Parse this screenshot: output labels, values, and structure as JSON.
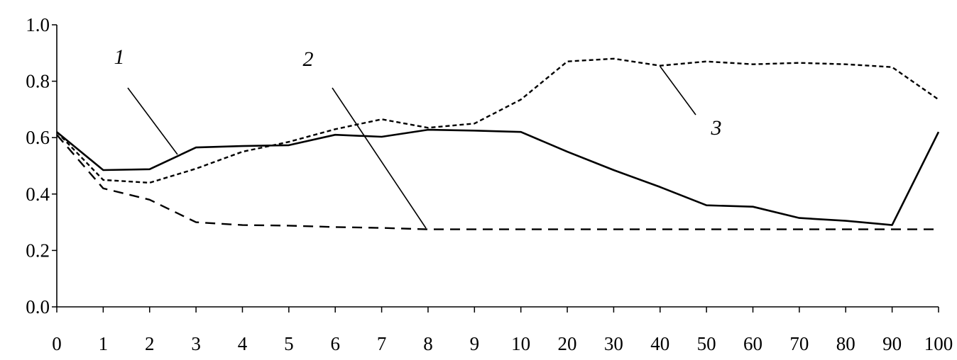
{
  "chart_data": {
    "type": "line",
    "categories": [
      "0",
      "1",
      "2",
      "3",
      "4",
      "5",
      "6",
      "7",
      "8",
      "9",
      "10",
      "20",
      "30",
      "40",
      "50",
      "60",
      "70",
      "80",
      "90",
      "100"
    ],
    "y_ticks": [
      "0.0",
      "0.2",
      "0.4",
      "0.6",
      "0.8",
      "1.0"
    ],
    "ylim": [
      0,
      1
    ],
    "grid": false,
    "legend": "none",
    "series": [
      {
        "name": "1",
        "style": "solid",
        "values": [
          0.62,
          0.485,
          0.488,
          0.565,
          0.57,
          0.573,
          0.61,
          0.603,
          0.628,
          0.625,
          0.62,
          0.55,
          0.485,
          0.425,
          0.36,
          0.355,
          0.315,
          0.305,
          0.29,
          0.62
        ]
      },
      {
        "name": "2",
        "style": "dashed",
        "values": [
          0.61,
          0.42,
          0.38,
          0.3,
          0.29,
          0.288,
          0.283,
          0.28,
          0.275,
          0.275,
          0.275,
          0.275,
          0.275,
          0.275,
          0.275,
          0.275,
          0.275,
          0.275,
          0.275,
          0.275
        ]
      },
      {
        "name": "3",
        "style": "dotted",
        "values": [
          0.62,
          0.45,
          0.44,
          0.49,
          0.55,
          0.585,
          0.63,
          0.665,
          0.635,
          0.65,
          0.735,
          0.87,
          0.88,
          0.855,
          0.87,
          0.86,
          0.865,
          0.86,
          0.85,
          0.735
        ]
      }
    ]
  }
}
